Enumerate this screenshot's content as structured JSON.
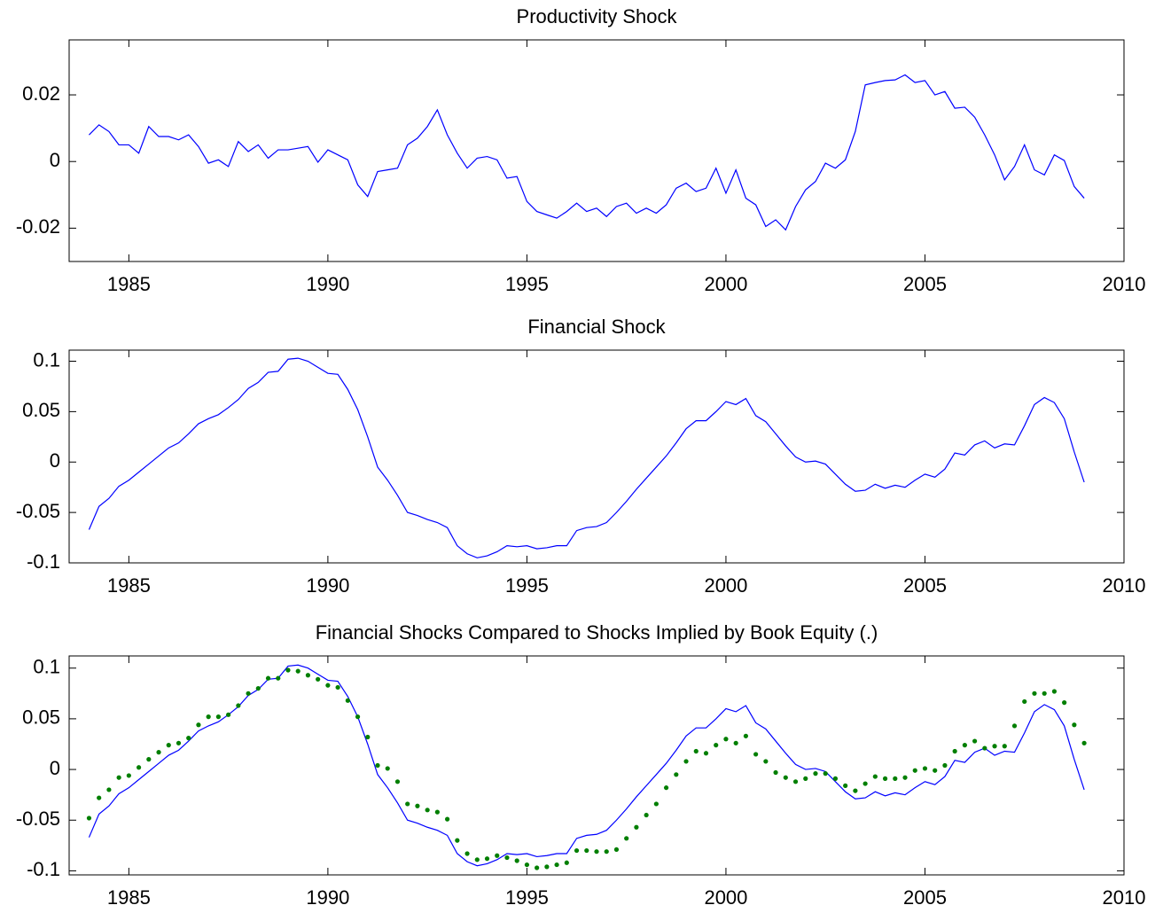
{
  "chart_data": [
    {
      "type": "line",
      "title": "Productivity Shock",
      "x": [
        1984,
        1984.25,
        1984.5,
        1984.75,
        1985,
        1985.25,
        1985.5,
        1985.75,
        1986,
        1986.25,
        1986.5,
        1986.75,
        1987,
        1987.25,
        1987.5,
        1987.75,
        1988,
        1988.25,
        1988.5,
        1988.75,
        1989,
        1989.25,
        1989.5,
        1989.75,
        1990,
        1990.25,
        1990.5,
        1990.75,
        1991,
        1991.25,
        1991.5,
        1991.75,
        1992,
        1992.25,
        1992.5,
        1992.75,
        1993,
        1993.25,
        1993.5,
        1993.75,
        1994,
        1994.25,
        1994.5,
        1994.75,
        1995,
        1995.25,
        1995.5,
        1995.75,
        1996,
        1996.25,
        1996.5,
        1996.75,
        1997,
        1997.25,
        1997.5,
        1997.75,
        1998,
        1998.25,
        1998.5,
        1998.75,
        1999,
        1999.25,
        1999.5,
        1999.75,
        2000,
        2000.25,
        2000.5,
        2000.75,
        2001,
        2001.25,
        2001.5,
        2001.75,
        2002,
        2002.25,
        2002.5,
        2002.75,
        2003,
        2003.25,
        2003.5,
        2003.75,
        2004,
        2004.25,
        2004.5,
        2004.75,
        2005,
        2005.25,
        2005.5,
        2005.75,
        2006,
        2006.25,
        2006.5,
        2006.75,
        2007,
        2007.25,
        2007.5,
        2007.75,
        2008,
        2008.25,
        2008.5,
        2008.75,
        2009
      ],
      "series": [
        {
          "color": "#0000ff",
          "values": [
            0.008,
            0.011,
            0.009,
            0.005,
            0.005,
            0.0025,
            0.0105,
            0.0075,
            0.0075,
            0.0065,
            0.008,
            0.0045,
            -0.0005,
            0.0005,
            -0.0015,
            0.006,
            0.003,
            0.005,
            0.001,
            0.0035,
            0.0035,
            0.004,
            0.0045,
            -0.0002,
            0.0035,
            0.002,
            0.0005,
            -0.007,
            -0.0105,
            -0.003,
            -0.0025,
            -0.002,
            0.005,
            0.007,
            0.0105,
            0.0155,
            0.008,
            0.0025,
            -0.002,
            0.001,
            0.0015,
            0.0005,
            -0.005,
            -0.0045,
            -0.012,
            -0.015,
            -0.016,
            -0.017,
            -0.015,
            -0.0125,
            -0.015,
            -0.014,
            -0.0165,
            -0.0135,
            -0.0125,
            -0.0155,
            -0.014,
            -0.0155,
            -0.013,
            -0.008,
            -0.0065,
            -0.009,
            -0.008,
            -0.002,
            -0.0095,
            -0.0025,
            -0.011,
            -0.013,
            -0.0195,
            -0.0175,
            -0.0205,
            -0.0135,
            -0.0085,
            -0.006,
            -0.0005,
            -0.002,
            0.0005,
            0.009,
            0.023,
            0.0237,
            0.0243,
            0.0245,
            0.026,
            0.0237,
            0.0243,
            0.02,
            0.021,
            0.016,
            0.0163,
            0.0133,
            0.008,
            0.002,
            -0.0055,
            -0.0015,
            0.005,
            -0.0025,
            -0.004,
            0.002,
            0.0003,
            -0.0075,
            -0.011
          ]
        }
      ],
      "xlim": [
        1983.5,
        2010
      ],
      "ylim": [
        -0.03,
        0.0365
      ],
      "xticks": [
        1985,
        1990,
        1995,
        2000,
        2005,
        2010
      ],
      "yticks": [
        -0.02,
        0,
        0.02
      ]
    },
    {
      "type": "line",
      "title": "Financial Shock",
      "x": [
        1984,
        1984.25,
        1984.5,
        1984.75,
        1985,
        1985.25,
        1985.5,
        1985.75,
        1986,
        1986.25,
        1986.5,
        1986.75,
        1987,
        1987.25,
        1987.5,
        1987.75,
        1988,
        1988.25,
        1988.5,
        1988.75,
        1989,
        1989.25,
        1989.5,
        1989.75,
        1990,
        1990.25,
        1990.5,
        1990.75,
        1991,
        1991.25,
        1991.5,
        1991.75,
        1992,
        1992.25,
        1992.5,
        1992.75,
        1993,
        1993.25,
        1993.5,
        1993.75,
        1994,
        1994.25,
        1994.5,
        1994.75,
        1995,
        1995.25,
        1995.5,
        1995.75,
        1996,
        1996.25,
        1996.5,
        1996.75,
        1997,
        1997.25,
        1997.5,
        1997.75,
        1998,
        1998.25,
        1998.5,
        1998.75,
        1999,
        1999.25,
        1999.5,
        1999.75,
        2000,
        2000.25,
        2000.5,
        2000.75,
        2001,
        2001.25,
        2001.5,
        2001.75,
        2002,
        2002.25,
        2002.5,
        2002.75,
        2003,
        2003.25,
        2003.5,
        2003.75,
        2004,
        2004.25,
        2004.5,
        2004.75,
        2005,
        2005.25,
        2005.5,
        2005.75,
        2006,
        2006.25,
        2006.5,
        2006.75,
        2007,
        2007.25,
        2007.5,
        2007.75,
        2008,
        2008.25,
        2008.5,
        2008.75,
        2009
      ],
      "series": [
        {
          "color": "#0000ff",
          "values": [
            -0.067,
            -0.044,
            -0.036,
            -0.024,
            -0.018,
            -0.01,
            -0.002,
            0.006,
            0.014,
            0.019,
            0.028,
            0.038,
            0.043,
            0.047,
            0.054,
            0.062,
            0.073,
            0.079,
            0.089,
            0.09,
            0.102,
            0.103,
            0.1,
            0.094,
            0.088,
            0.087,
            0.072,
            0.052,
            0.025,
            -0.005,
            -0.018,
            -0.033,
            -0.05,
            -0.053,
            -0.057,
            -0.06,
            -0.065,
            -0.083,
            -0.091,
            -0.095,
            -0.093,
            -0.089,
            -0.083,
            -0.084,
            -0.083,
            -0.086,
            -0.085,
            -0.083,
            -0.083,
            -0.068,
            -0.065,
            -0.064,
            -0.06,
            -0.05,
            -0.039,
            -0.027,
            -0.016,
            -0.005,
            0.006,
            0.019,
            0.033,
            0.041,
            0.041,
            0.05,
            0.06,
            0.057,
            0.063,
            0.046,
            0.04,
            0.028,
            0.016,
            0.005,
            0,
            0.001,
            -0.002,
            -0.012,
            -0.022,
            -0.029,
            -0.028,
            -0.022,
            -0.026,
            -0.023,
            -0.025,
            -0.018,
            -0.012,
            -0.015,
            -0.007,
            0.009,
            0.007,
            0.017,
            0.021,
            0.014,
            0.018,
            0.017,
            0.036,
            0.057,
            0.064,
            0.059,
            0.043,
            0.01,
            -0.02
          ]
        }
      ],
      "xlim": [
        1983.5,
        2010
      ],
      "ylim": [
        -0.1,
        0.111
      ],
      "xticks": [
        1985,
        1990,
        1995,
        2000,
        2005,
        2010
      ],
      "yticks": [
        -0.1,
        -0.05,
        0,
        0.05,
        0.1
      ]
    },
    {
      "type": "line",
      "title": "Financial Shocks Compared to Shocks Implied by Book Equity (.)",
      "x": [
        1984,
        1984.25,
        1984.5,
        1984.75,
        1985,
        1985.25,
        1985.5,
        1985.75,
        1986,
        1986.25,
        1986.5,
        1986.75,
        1987,
        1987.25,
        1987.5,
        1987.75,
        1988,
        1988.25,
        1988.5,
        1988.75,
        1989,
        1989.25,
        1989.5,
        1989.75,
        1990,
        1990.25,
        1990.5,
        1990.75,
        1991,
        1991.25,
        1991.5,
        1991.75,
        1992,
        1992.25,
        1992.5,
        1992.75,
        1993,
        1993.25,
        1993.5,
        1993.75,
        1994,
        1994.25,
        1994.5,
        1994.75,
        1995,
        1995.25,
        1995.5,
        1995.75,
        1996,
        1996.25,
        1996.5,
        1996.75,
        1997,
        1997.25,
        1997.5,
        1997.75,
        1998,
        1998.25,
        1998.5,
        1998.75,
        1999,
        1999.25,
        1999.5,
        1999.75,
        2000,
        2000.25,
        2000.5,
        2000.75,
        2001,
        2001.25,
        2001.5,
        2001.75,
        2002,
        2002.25,
        2002.5,
        2002.75,
        2003,
        2003.25,
        2003.5,
        2003.75,
        2004,
        2004.25,
        2004.5,
        2004.75,
        2005,
        2005.25,
        2005.5,
        2005.75,
        2006,
        2006.25,
        2006.5,
        2006.75,
        2007,
        2007.25,
        2007.5,
        2007.75,
        2008,
        2008.25,
        2008.5,
        2008.75,
        2009
      ],
      "series": [
        {
          "color": "#0000ff",
          "style": "line",
          "values": [
            -0.067,
            -0.044,
            -0.036,
            -0.024,
            -0.018,
            -0.01,
            -0.002,
            0.006,
            0.014,
            0.019,
            0.028,
            0.038,
            0.043,
            0.047,
            0.054,
            0.062,
            0.073,
            0.079,
            0.089,
            0.09,
            0.102,
            0.103,
            0.1,
            0.094,
            0.088,
            0.087,
            0.072,
            0.052,
            0.025,
            -0.005,
            -0.018,
            -0.033,
            -0.05,
            -0.053,
            -0.057,
            -0.06,
            -0.065,
            -0.083,
            -0.091,
            -0.095,
            -0.093,
            -0.089,
            -0.083,
            -0.084,
            -0.083,
            -0.086,
            -0.085,
            -0.083,
            -0.083,
            -0.068,
            -0.065,
            -0.064,
            -0.06,
            -0.05,
            -0.039,
            -0.027,
            -0.016,
            -0.005,
            0.006,
            0.019,
            0.033,
            0.041,
            0.041,
            0.05,
            0.06,
            0.057,
            0.063,
            0.046,
            0.04,
            0.028,
            0.016,
            0.005,
            0,
            0.001,
            -0.002,
            -0.012,
            -0.022,
            -0.029,
            -0.028,
            -0.022,
            -0.026,
            -0.023,
            -0.025,
            -0.018,
            -0.012,
            -0.015,
            -0.007,
            0.009,
            0.007,
            0.017,
            0.021,
            0.014,
            0.018,
            0.017,
            0.036,
            0.057,
            0.064,
            0.059,
            0.043,
            0.01,
            -0.02
          ]
        },
        {
          "color": "#007f00",
          "style": "dots",
          "values": [
            -0.048,
            -0.028,
            -0.02,
            -0.008,
            -0.006,
            0.002,
            0.01,
            0.017,
            0.024,
            0.026,
            0.031,
            0.044,
            0.052,
            0.052,
            0.054,
            0.063,
            0.075,
            0.08,
            0.09,
            0.09,
            0.098,
            0.097,
            0.093,
            0.089,
            0.083,
            0.081,
            0.068,
            0.052,
            0.032,
            0.004,
            0.001,
            -0.012,
            -0.034,
            -0.036,
            -0.04,
            -0.042,
            -0.049,
            -0.07,
            -0.083,
            -0.089,
            -0.088,
            -0.085,
            -0.087,
            -0.09,
            -0.094,
            -0.097,
            -0.096,
            -0.094,
            -0.092,
            -0.08,
            -0.08,
            -0.081,
            -0.081,
            -0.079,
            -0.068,
            -0.057,
            -0.045,
            -0.034,
            -0.018,
            -0.005,
            0.008,
            0.018,
            0.016,
            0.024,
            0.03,
            0.026,
            0.033,
            0.015,
            0.008,
            -0.003,
            -0.008,
            -0.012,
            -0.009,
            -0.004,
            -0.004,
            -0.009,
            -0.016,
            -0.021,
            -0.014,
            -0.007,
            -0.009,
            -0.009,
            -0.008,
            -0.001,
            0.001,
            -0.001,
            0.004,
            0.018,
            0.024,
            0.028,
            0.021,
            0.023,
            0.023,
            0.043,
            0.067,
            0.075,
            0.075,
            0.077,
            0.066,
            0.044,
            0.026
          ]
        }
      ],
      "xlim": [
        1983.5,
        2010
      ],
      "ylim": [
        -0.104,
        0.112
      ],
      "xticks": [
        1985,
        1990,
        1995,
        2000,
        2005,
        2010
      ],
      "yticks": [
        -0.1,
        -0.05,
        0,
        0.05,
        0.1
      ]
    }
  ]
}
